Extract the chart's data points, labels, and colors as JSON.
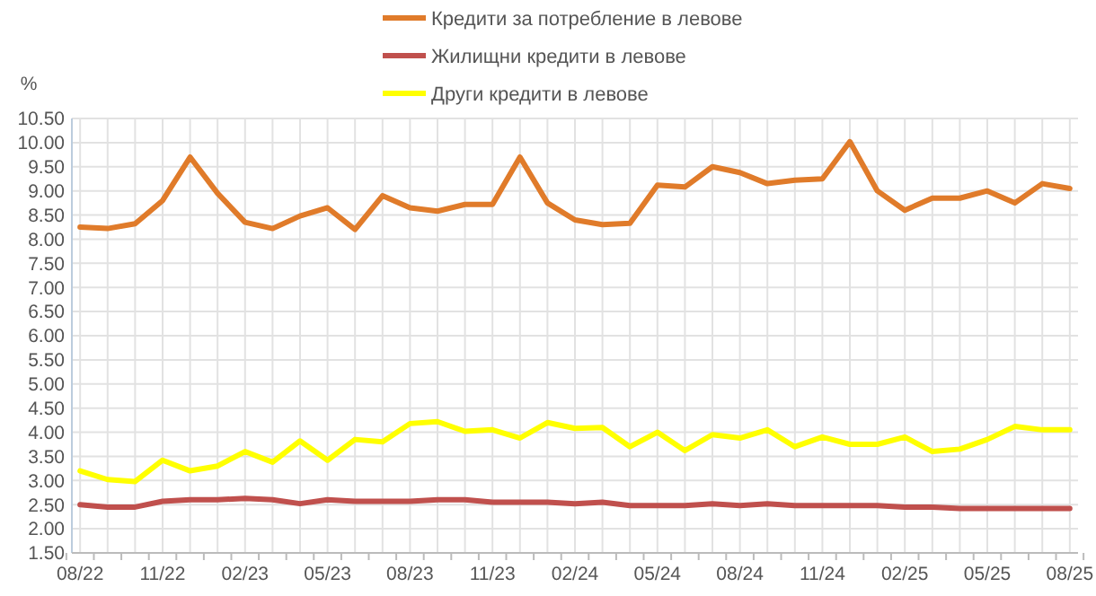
{
  "chart_data": {
    "type": "line",
    "ylabel": "%",
    "categories": [
      "08/22",
      null,
      null,
      "11/22",
      null,
      null,
      "02/23",
      null,
      null,
      "05/23",
      null,
      null,
      "08/23",
      null,
      null,
      "11/23",
      null,
      null,
      "02/24",
      null,
      null,
      "05/24",
      null,
      null,
      "08/24",
      null,
      null,
      "11/24",
      null,
      null,
      "02/25",
      null,
      null,
      "05/25",
      null,
      null,
      "08/25"
    ],
    "series": [
      {
        "name": "Кредити за потребление в левове",
        "color": "#e07b2a",
        "values": [
          8.25,
          8.22,
          8.32,
          8.8,
          9.7,
          8.95,
          8.35,
          8.22,
          8.48,
          8.65,
          8.2,
          8.9,
          8.65,
          8.58,
          8.72,
          8.72,
          9.7,
          8.75,
          8.4,
          8.3,
          8.33,
          9.12,
          9.08,
          9.5,
          9.38,
          9.15,
          9.22,
          9.25,
          10.02,
          9.0,
          8.6,
          8.85,
          8.85,
          9.0,
          8.75,
          9.15,
          9.05
        ]
      },
      {
        "name": "Жилищни кредити в левове",
        "color": "#c0504d",
        "values": [
          2.5,
          2.45,
          2.45,
          2.57,
          2.6,
          2.6,
          2.63,
          2.6,
          2.52,
          2.6,
          2.57,
          2.57,
          2.57,
          2.6,
          2.6,
          2.55,
          2.55,
          2.55,
          2.52,
          2.55,
          2.48,
          2.48,
          2.48,
          2.52,
          2.48,
          2.52,
          2.48,
          2.48,
          2.48,
          2.48,
          2.45,
          2.45,
          2.42,
          2.42,
          2.42,
          2.42,
          2.42
        ]
      },
      {
        "name": "Други кредити в левове",
        "color": "#ffff00",
        "values": [
          3.2,
          3.02,
          2.98,
          3.42,
          3.2,
          3.3,
          3.6,
          3.38,
          3.82,
          3.42,
          3.85,
          3.8,
          4.18,
          4.22,
          4.02,
          4.05,
          3.88,
          4.2,
          4.08,
          4.1,
          3.7,
          4.0,
          3.62,
          3.95,
          3.88,
          4.05,
          3.7,
          3.9,
          3.75,
          3.75,
          3.9,
          3.6,
          3.65,
          3.85,
          4.12,
          4.05,
          4.05
        ]
      }
    ],
    "ylim": [
      1.5,
      10.5
    ],
    "yticks": [
      {
        "value": 1.5,
        "label": "1.50"
      },
      {
        "value": 2,
        "label": "2.00"
      },
      {
        "value": 2.5,
        "label": "2.50"
      },
      {
        "value": 3,
        "label": "3.00"
      },
      {
        "value": 3.5,
        "label": "3.50"
      },
      {
        "value": 4,
        "label": "4.00"
      },
      {
        "value": 4.5,
        "label": "4.50"
      },
      {
        "value": 5,
        "label": "5.00"
      },
      {
        "value": 5.5,
        "label": "5.50"
      },
      {
        "value": 6,
        "label": "6.00"
      },
      {
        "value": 6.5,
        "label": "6.50"
      },
      {
        "value": 7,
        "label": "7.00"
      },
      {
        "value": 7.5,
        "label": "7.50"
      },
      {
        "value": 8,
        "label": "8.00"
      },
      {
        "value": 8.5,
        "label": "8.50"
      },
      {
        "value": 9,
        "label": "9.00"
      },
      {
        "value": 9.5,
        "label": "9.50"
      },
      {
        "value": 10,
        "label": "10.00"
      },
      {
        "value": 10.5,
        "label": "10.50"
      }
    ],
    "grid": true,
    "legend": "top",
    "marker": "none",
    "line_style": "solid"
  }
}
